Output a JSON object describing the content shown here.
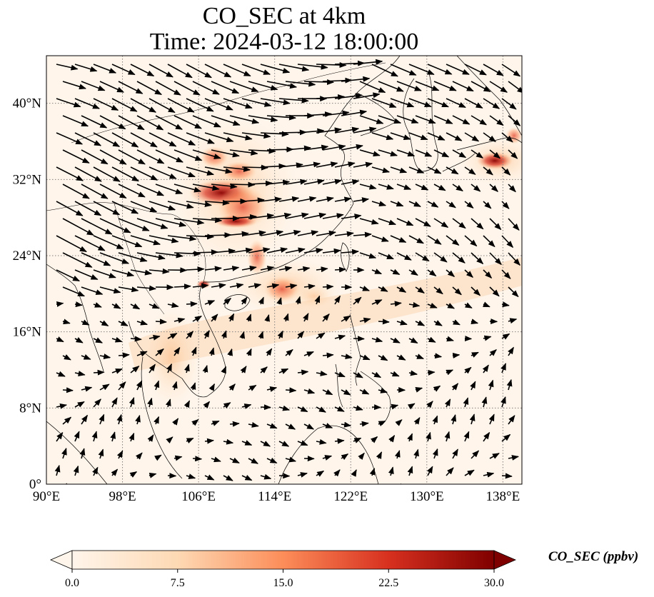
{
  "title": {
    "line1": "CO_SEC at 4km",
    "line2": "Time: 2024-03-12 18:00:00"
  },
  "map": {
    "lon_range": [
      90,
      140
    ],
    "lat_range": [
      0,
      45
    ],
    "x_ticks": [
      "90°E",
      "98°E",
      "106°E",
      "114°E",
      "122°E",
      "130°E",
      "138°E"
    ],
    "y_ticks": [
      "0°",
      "8°N",
      "16°N",
      "24°N",
      "32°N",
      "40°N"
    ],
    "gridlines": true,
    "field_variable": "CO_SEC",
    "overlay": "wind vectors"
  },
  "colorbar": {
    "label": "CO_SEC (ppbv)",
    "ticks": [
      "0.0",
      "7.5",
      "15.0",
      "22.5",
      "30.0"
    ],
    "range": [
      0,
      30
    ],
    "colormap": "OrRd",
    "extend": "both"
  },
  "colors": {
    "background": "#fff5eb",
    "low": "#fee6ce",
    "mid": "#fdae6b",
    "high": "#e6550d",
    "max": "#7f0000",
    "coast": "#000000",
    "grid": "#808080"
  }
}
